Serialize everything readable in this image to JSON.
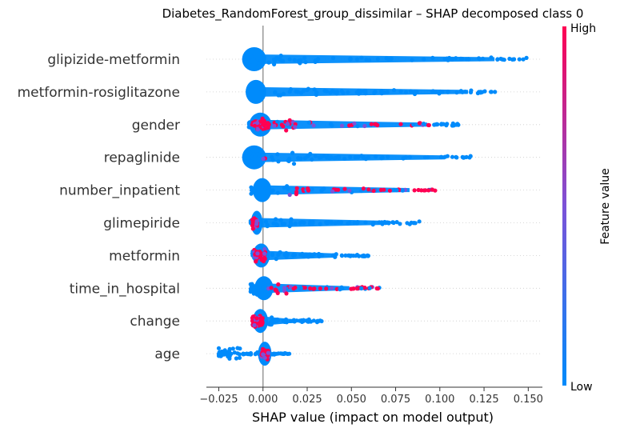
{
  "chart_data": {
    "type": "scatter",
    "subtype": "shap-beeswarm",
    "title": "Diabetes_RandomForest_group_dissimilar – SHAP decomposed class 0",
    "xlabel": "SHAP value (impact on model output)",
    "xlim": [
      -0.032,
      0.158
    ],
    "xticks": [
      "−0.025",
      "0.000",
      "0.025",
      "0.050",
      "0.075",
      "0.100",
      "0.125",
      "0.150"
    ],
    "xtick_values": [
      -0.025,
      0.0,
      0.025,
      0.05,
      0.075,
      0.1,
      0.125,
      0.15
    ],
    "grid": false,
    "colorbar": {
      "label": "Feature value",
      "high": "High",
      "low": "Low",
      "colors": [
        "#008bfb",
        "#7c52d8",
        "#ff0052"
      ]
    },
    "features": [
      {
        "name": "glipizide-metformin",
        "min": -0.009,
        "max": 0.149,
        "core": [
          -0.01,
          0.0
        ],
        "high_range": null,
        "high_cluster": null
      },
      {
        "name": "metformin-rosiglitazone",
        "min": -0.008,
        "max": 0.134,
        "core": [
          -0.008,
          0.0
        ],
        "high_range": null,
        "high_cluster": null
      },
      {
        "name": "gender",
        "min": -0.008,
        "max": 0.111,
        "core": [
          -0.006,
          0.003
        ],
        "high_range": [
          -0.007,
          0.094
        ],
        "high_cluster": [
          -0.007,
          0.003
        ]
      },
      {
        "name": "repaglinide",
        "min": -0.01,
        "max": 0.121,
        "core": [
          -0.01,
          0.0
        ],
        "high_range": [
          0.0,
          0.005
        ],
        "high_cluster": null
      },
      {
        "name": "number_inpatient",
        "min": -0.007,
        "max": 0.101,
        "core": [
          -0.004,
          0.003
        ],
        "high_range": [
          0.015,
          0.101
        ],
        "high_cluster": null
      },
      {
        "name": "glimepiride",
        "min": -0.007,
        "max": 0.089,
        "core": [
          -0.005,
          -0.002
        ],
        "high_range": [
          -0.006,
          -0.003
        ],
        "high_cluster": [
          -0.006,
          -0.003
        ]
      },
      {
        "name": "metformin",
        "min": -0.006,
        "max": 0.06,
        "core": [
          -0.004,
          0.002
        ],
        "high_range": [
          -0.005,
          0.002
        ],
        "high_cluster": [
          -0.005,
          0.002
        ]
      },
      {
        "name": "time_in_hospital",
        "min": -0.007,
        "max": 0.067,
        "core": [
          -0.003,
          0.004
        ],
        "high_range": [
          0.003,
          0.067
        ],
        "high_cluster": null
      },
      {
        "name": "change",
        "min": -0.006,
        "max": 0.034,
        "core": [
          -0.004,
          0.001
        ],
        "high_range": [
          -0.006,
          0.0
        ],
        "high_cluster": [
          -0.006,
          0.0
        ]
      },
      {
        "name": "age",
        "min": -0.025,
        "max": 0.015,
        "core": [
          -0.001,
          0.003
        ],
        "high_range": [
          -0.001,
          0.003
        ],
        "high_cluster": [
          -0.001,
          0.003
        ]
      }
    ]
  }
}
